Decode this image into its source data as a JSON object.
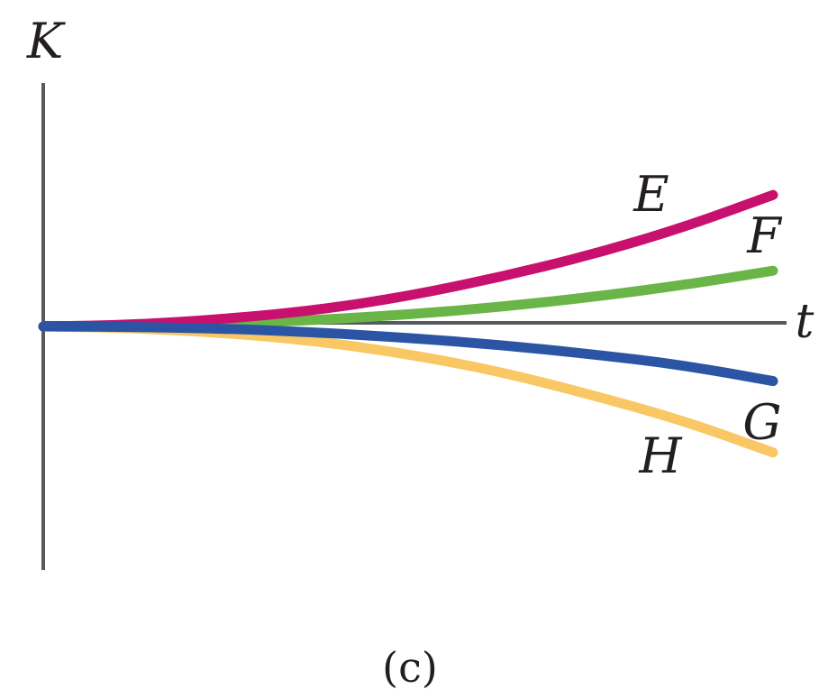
{
  "figure": {
    "caption": "(c)"
  },
  "chart_data": {
    "type": "line",
    "xlabel": "t",
    "ylabel": "K",
    "xlim": [
      0,
      1
    ],
    "ylim": [
      -0.45,
      0.45
    ],
    "grid": false,
    "series": [
      {
        "name": "E",
        "color": "#c8106e",
        "x": [
          0,
          0.125,
          0.25,
          0.375,
          0.5,
          0.625,
          0.75,
          0.875,
          1
        ],
        "y": [
          0,
          0.003,
          0.014,
          0.03,
          0.056,
          0.091,
          0.132,
          0.182,
          0.243
        ]
      },
      {
        "name": "F",
        "color": "#6ab547",
        "x": [
          0,
          0.125,
          0.25,
          0.375,
          0.5,
          0.625,
          0.75,
          0.875,
          1
        ],
        "y": [
          0,
          0.001,
          0.005,
          0.012,
          0.022,
          0.036,
          0.054,
          0.076,
          0.103
        ]
      },
      {
        "name": "G",
        "color": "#2b55a4",
        "x": [
          0,
          0.125,
          0.25,
          0.375,
          0.5,
          0.625,
          0.75,
          0.875,
          1
        ],
        "y": [
          0,
          -0.001,
          -0.004,
          -0.011,
          -0.021,
          -0.034,
          -0.051,
          -0.071,
          -0.101
        ]
      },
      {
        "name": "H",
        "color": "#f9c764",
        "x": [
          0,
          0.125,
          0.25,
          0.375,
          0.5,
          0.625,
          0.75,
          0.875,
          1
        ],
        "y": [
          0,
          -0.003,
          -0.012,
          -0.027,
          -0.051,
          -0.083,
          -0.126,
          -0.173,
          -0.233
        ]
      }
    ]
  }
}
